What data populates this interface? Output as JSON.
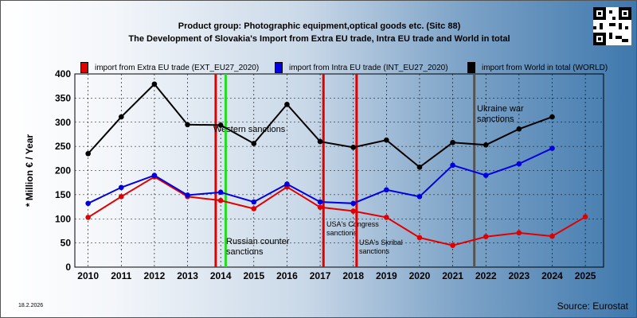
{
  "header": {
    "line1": "Product group: Photographic equipment,optical goods etc. (Sitc 88)",
    "line2": "The Development of Slovakia's Import from Extra EU trade, Intra EU trade and World in total"
  },
  "footer": {
    "date": "18.2.2026",
    "source": "Source: Eurostat"
  },
  "chart_data": {
    "type": "line",
    "ylabel": "* Million € / Year",
    "ylim": [
      0,
      400
    ],
    "yticks": [
      0,
      50,
      100,
      150,
      200,
      250,
      300,
      350,
      400
    ],
    "x": [
      2010,
      2011,
      2012,
      2013,
      2014,
      2015,
      2016,
      2017,
      2018,
      2019,
      2020,
      2021,
      2022,
      2023,
      2024,
      2025
    ],
    "grid": true,
    "legend_position": "top",
    "series": [
      {
        "name": "import from Extra EU trade (EXT_EU27_2020)",
        "color": "#e00000",
        "values": [
          103,
          146,
          187,
          146,
          138,
          121,
          166,
          124,
          116,
          103,
          61,
          45,
          63,
          71,
          64,
          104
        ]
      },
      {
        "name": "import from Intra EU trade (INT_EU27_2020)",
        "color": "#0000e0",
        "values": [
          132,
          165,
          190,
          149,
          155,
          135,
          172,
          135,
          132,
          160,
          146,
          211,
          190,
          214,
          246,
          null
        ]
      },
      {
        "name": "import from World in total (WORLD)",
        "color": "#000000",
        "values": [
          235,
          311,
          379,
          295,
          294,
          256,
          337,
          260,
          248,
          263,
          207,
          258,
          253,
          286,
          311,
          null
        ]
      }
    ],
    "events": [
      {
        "label": "Western sanctions",
        "x": 2013.85,
        "color": "#e00000"
      },
      {
        "label": "Russian counter sanctions",
        "x": 2014.15,
        "color": "#22dd22"
      },
      {
        "label": "USA's Congress sanctions",
        "x": 2017.1,
        "color": "#e00000"
      },
      {
        "label": "USA's Skribal sanctions",
        "x": 2018.1,
        "color": "#e00000"
      },
      {
        "label": "Ukraine war sanctions",
        "x": 2021.65,
        "color": "#555555"
      }
    ]
  }
}
